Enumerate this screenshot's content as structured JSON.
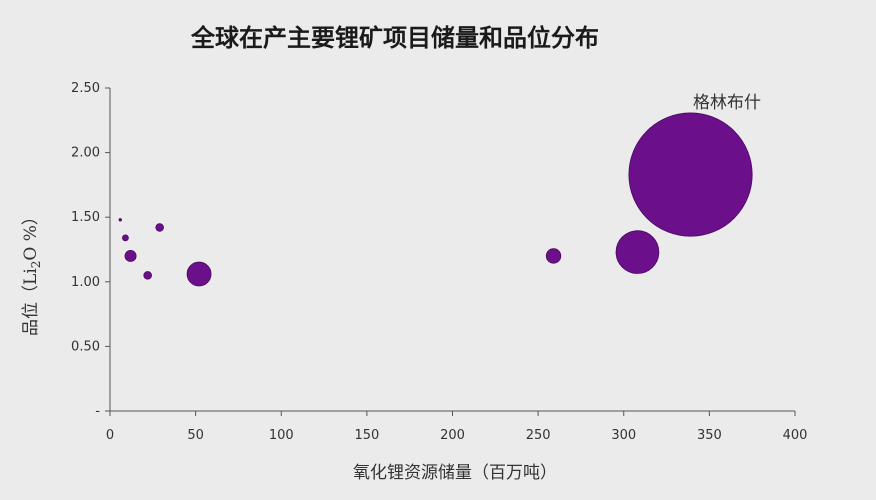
{
  "chart_data": {
    "type": "scatter",
    "title": "全球在产主要锂矿项目储量和品位分布",
    "xlabel": "氧化锂资源储量（百万吨）",
    "ylabel": {
      "prefix": "品位（Li",
      "subscript": "2",
      "suffix": "O %）"
    },
    "xlim": [
      0,
      400
    ],
    "ylim": [
      0,
      2.5
    ],
    "x_ticks": [
      {
        "value": 0,
        "label": "0"
      },
      {
        "value": 50,
        "label": "50"
      },
      {
        "value": 100,
        "label": "100"
      },
      {
        "value": 150,
        "label": "150"
      },
      {
        "value": 200,
        "label": "200"
      },
      {
        "value": 250,
        "label": "250"
      },
      {
        "value": 300,
        "label": "300"
      },
      {
        "value": 350,
        "label": "350"
      },
      {
        "value": 400,
        "label": "400"
      }
    ],
    "y_ticks": [
      {
        "value": 0,
        "label": "-"
      },
      {
        "value": 0.5,
        "label": "0.50"
      },
      {
        "value": 1.0,
        "label": "1.00"
      },
      {
        "value": 1.5,
        "label": "1.50"
      },
      {
        "value": 2.0,
        "label": "2.00"
      },
      {
        "value": 2.5,
        "label": "2.50"
      }
    ],
    "grid": false,
    "bubble_color": "#6b0f8a",
    "bubble_edge": "#4a0a60",
    "points": [
      {
        "x": 6,
        "y": 1.48,
        "size": 1.5
      },
      {
        "x": 9,
        "y": 1.34,
        "size": 3.5
      },
      {
        "x": 12,
        "y": 1.2,
        "size": 6.5
      },
      {
        "x": 22,
        "y": 1.05,
        "size": 4.5
      },
      {
        "x": 29,
        "y": 1.42,
        "size": 4.5
      },
      {
        "x": 52,
        "y": 1.06,
        "size": 14
      },
      {
        "x": 259,
        "y": 1.2,
        "size": 8.5
      },
      {
        "x": 308,
        "y": 1.23,
        "size": 25
      },
      {
        "x": 339,
        "y": 1.83,
        "size": 72,
        "label": "格林布什"
      }
    ]
  }
}
